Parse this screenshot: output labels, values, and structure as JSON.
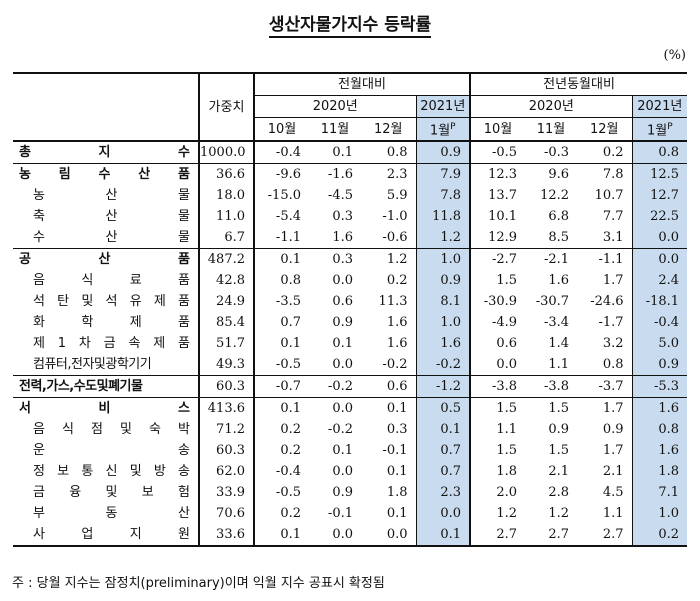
{
  "title": "생산자물가지수 등락률",
  "unit": "(%)",
  "headers": {
    "weight": "가중치",
    "mom": "전월대비",
    "yoy": "전년동월대비",
    "year2020": "2020년",
    "year2021": "2021년",
    "oct": "10월",
    "nov": "11월",
    "dec": "12월",
    "jan": "1월",
    "jan_sup": "P"
  },
  "rows": [
    {
      "name": "총지수",
      "level": 0,
      "weight": "1000.0",
      "mom": [
        "-0.4",
        "0.1",
        "0.8",
        "0.9"
      ],
      "yoy": [
        "-0.5",
        "-0.3",
        "0.2",
        "0.8"
      ]
    },
    {
      "name": "농림수산품",
      "level": 1,
      "weight": "36.6",
      "mom": [
        "-9.6",
        "-1.6",
        "2.3",
        "7.9"
      ],
      "yoy": [
        "12.3",
        "9.6",
        "7.8",
        "12.5"
      ]
    },
    {
      "name": "농산물",
      "level": 2,
      "weight": "18.0",
      "mom": [
        "-15.0",
        "-4.5",
        "5.9",
        "7.8"
      ],
      "yoy": [
        "13.7",
        "12.2",
        "10.7",
        "12.7"
      ]
    },
    {
      "name": "축산물",
      "level": 2,
      "weight": "11.0",
      "mom": [
        "-5.4",
        "0.3",
        "-1.0",
        "11.8"
      ],
      "yoy": [
        "10.1",
        "6.8",
        "7.7",
        "22.5"
      ]
    },
    {
      "name": "수산물",
      "level": 2,
      "weight": "6.7",
      "mom": [
        "-1.1",
        "1.6",
        "-0.6",
        "1.2"
      ],
      "yoy": [
        "12.9",
        "8.5",
        "3.1",
        "0.0"
      ]
    },
    {
      "name": "공산품",
      "level": 1,
      "weight": "487.2",
      "mom": [
        "0.1",
        "0.3",
        "1.2",
        "1.0"
      ],
      "yoy": [
        "-2.7",
        "-2.1",
        "-1.1",
        "0.0"
      ]
    },
    {
      "name": "음식료품",
      "level": 2,
      "weight": "42.8",
      "mom": [
        "0.8",
        "0.0",
        "0.2",
        "0.9"
      ],
      "yoy": [
        "1.5",
        "1.6",
        "1.7",
        "2.4"
      ]
    },
    {
      "name": "석탄및석유제품",
      "level": 2,
      "weight": "24.9",
      "mom": [
        "-3.5",
        "0.6",
        "11.3",
        "8.1"
      ],
      "yoy": [
        "-30.9",
        "-30.7",
        "-24.6",
        "-18.1"
      ]
    },
    {
      "name": "화학제품",
      "level": 2,
      "weight": "85.4",
      "mom": [
        "0.7",
        "0.9",
        "1.6",
        "1.0"
      ],
      "yoy": [
        "-4.9",
        "-3.4",
        "-1.7",
        "-0.4"
      ]
    },
    {
      "name": "제1차금속제품",
      "level": 2,
      "weight": "51.7",
      "mom": [
        "0.1",
        "0.1",
        "1.6",
        "1.6"
      ],
      "yoy": [
        "0.6",
        "1.4",
        "3.2",
        "5.0"
      ]
    },
    {
      "name": "컴퓨터,전자및광학기기",
      "level": 2,
      "weight": "49.3",
      "mom": [
        "-0.5",
        "0.0",
        "-0.2",
        "-0.2"
      ],
      "yoy": [
        "0.0",
        "1.1",
        "0.8",
        "0.9"
      ]
    },
    {
      "name": "전력,가스,수도및폐기물",
      "level": 1,
      "weight": "60.3",
      "mom": [
        "-0.7",
        "-0.2",
        "0.6",
        "-1.2"
      ],
      "yoy": [
        "-3.8",
        "-3.8",
        "-3.7",
        "-5.3"
      ]
    },
    {
      "name": "서비스",
      "level": 1,
      "weight": "413.6",
      "mom": [
        "0.1",
        "0.0",
        "0.1",
        "0.5"
      ],
      "yoy": [
        "1.5",
        "1.5",
        "1.7",
        "1.6"
      ]
    },
    {
      "name": "음식점및숙박",
      "level": 2,
      "weight": "71.2",
      "mom": [
        "0.2",
        "-0.2",
        "0.3",
        "0.1"
      ],
      "yoy": [
        "1.1",
        "0.9",
        "0.9",
        "0.8"
      ]
    },
    {
      "name": "운송",
      "level": 2,
      "weight": "60.3",
      "mom": [
        "0.2",
        "0.1",
        "-0.1",
        "0.7"
      ],
      "yoy": [
        "1.5",
        "1.5",
        "1.7",
        "1.6"
      ]
    },
    {
      "name": "정보통신및방송",
      "level": 2,
      "weight": "62.0",
      "mom": [
        "-0.4",
        "0.0",
        "0.1",
        "0.7"
      ],
      "yoy": [
        "1.8",
        "2.1",
        "2.1",
        "1.8"
      ]
    },
    {
      "name": "금융및보험",
      "level": 2,
      "weight": "33.9",
      "mom": [
        "-0.5",
        "0.9",
        "1.8",
        "2.3"
      ],
      "yoy": [
        "2.0",
        "2.8",
        "4.5",
        "7.1"
      ]
    },
    {
      "name": "부동산",
      "level": 2,
      "weight": "70.6",
      "mom": [
        "0.2",
        "-0.1",
        "0.1",
        "0.0"
      ],
      "yoy": [
        "1.2",
        "1.2",
        "1.1",
        "1.0"
      ]
    },
    {
      "name": "사업지원",
      "level": 2,
      "weight": "33.6",
      "mom": [
        "0.1",
        "0.0",
        "0.0",
        "0.1"
      ],
      "yoy": [
        "2.7",
        "2.7",
        "2.7",
        "0.2"
      ]
    }
  ],
  "note": "주 : 당월 지수는 잠정치(preliminary)이며 익월 지수 공표시 확정됨"
}
